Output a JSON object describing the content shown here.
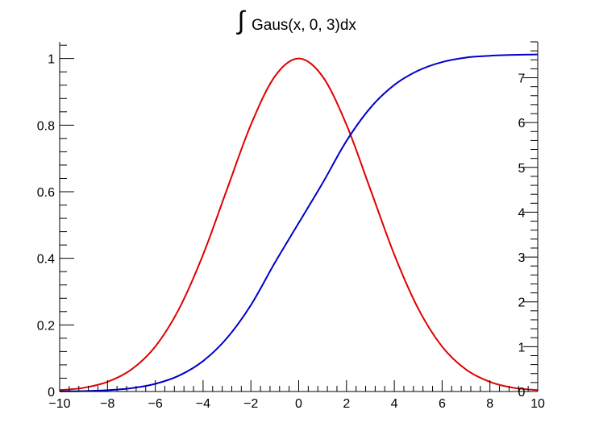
{
  "chart_data": {
    "type": "line",
    "title": "Gaus(x, 0, 3)dx",
    "title_symbol": "∫",
    "x": [
      -10,
      -9,
      -8,
      -7,
      -6,
      -5,
      -4,
      -3,
      -2,
      -1,
      0,
      1,
      2,
      3,
      4,
      5,
      6,
      7,
      8,
      9,
      10
    ],
    "xlim": [
      -10,
      10
    ],
    "ylim": [
      0,
      1.05
    ],
    "ylim_right": [
      0,
      7.8
    ],
    "x_ticks": [
      -10,
      -8,
      -6,
      -4,
      -2,
      0,
      2,
      4,
      6,
      8,
      10
    ],
    "x_tick_labels": [
      "−10",
      "−8",
      "−6",
      "−4",
      "−2",
      "0",
      "2",
      "4",
      "6",
      "8",
      "10"
    ],
    "y_ticks": [
      0,
      0.2,
      0.4,
      0.6,
      0.8,
      1
    ],
    "y_tick_labels": [
      "0",
      "0.2",
      "0.4",
      "0.6",
      "0.8",
      "1"
    ],
    "y_right_ticks": [
      0,
      1,
      2,
      3,
      4,
      5,
      6,
      7
    ],
    "y_right_tick_labels": [
      "0",
      "1",
      "2",
      "3",
      "4",
      "5",
      "6",
      "7"
    ],
    "grid": false,
    "series": [
      {
        "color": "#e00000",
        "axis": "left",
        "values": [
          0.004,
          0.011,
          0.029,
          0.066,
          0.135,
          0.249,
          0.411,
          0.607,
          0.801,
          0.946,
          1.0,
          0.946,
          0.801,
          0.607,
          0.411,
          0.249,
          0.135,
          0.066,
          0.029,
          0.011,
          0.004
        ]
      },
      {
        "color": "#0000cc",
        "axis": "right",
        "values": [
          0.003,
          0.01,
          0.029,
          0.074,
          0.171,
          0.356,
          0.68,
          1.193,
          1.927,
          2.87,
          3.76,
          4.65,
          5.59,
          6.33,
          6.84,
          7.16,
          7.35,
          7.45,
          7.49,
          7.51,
          7.52
        ]
      }
    ]
  }
}
